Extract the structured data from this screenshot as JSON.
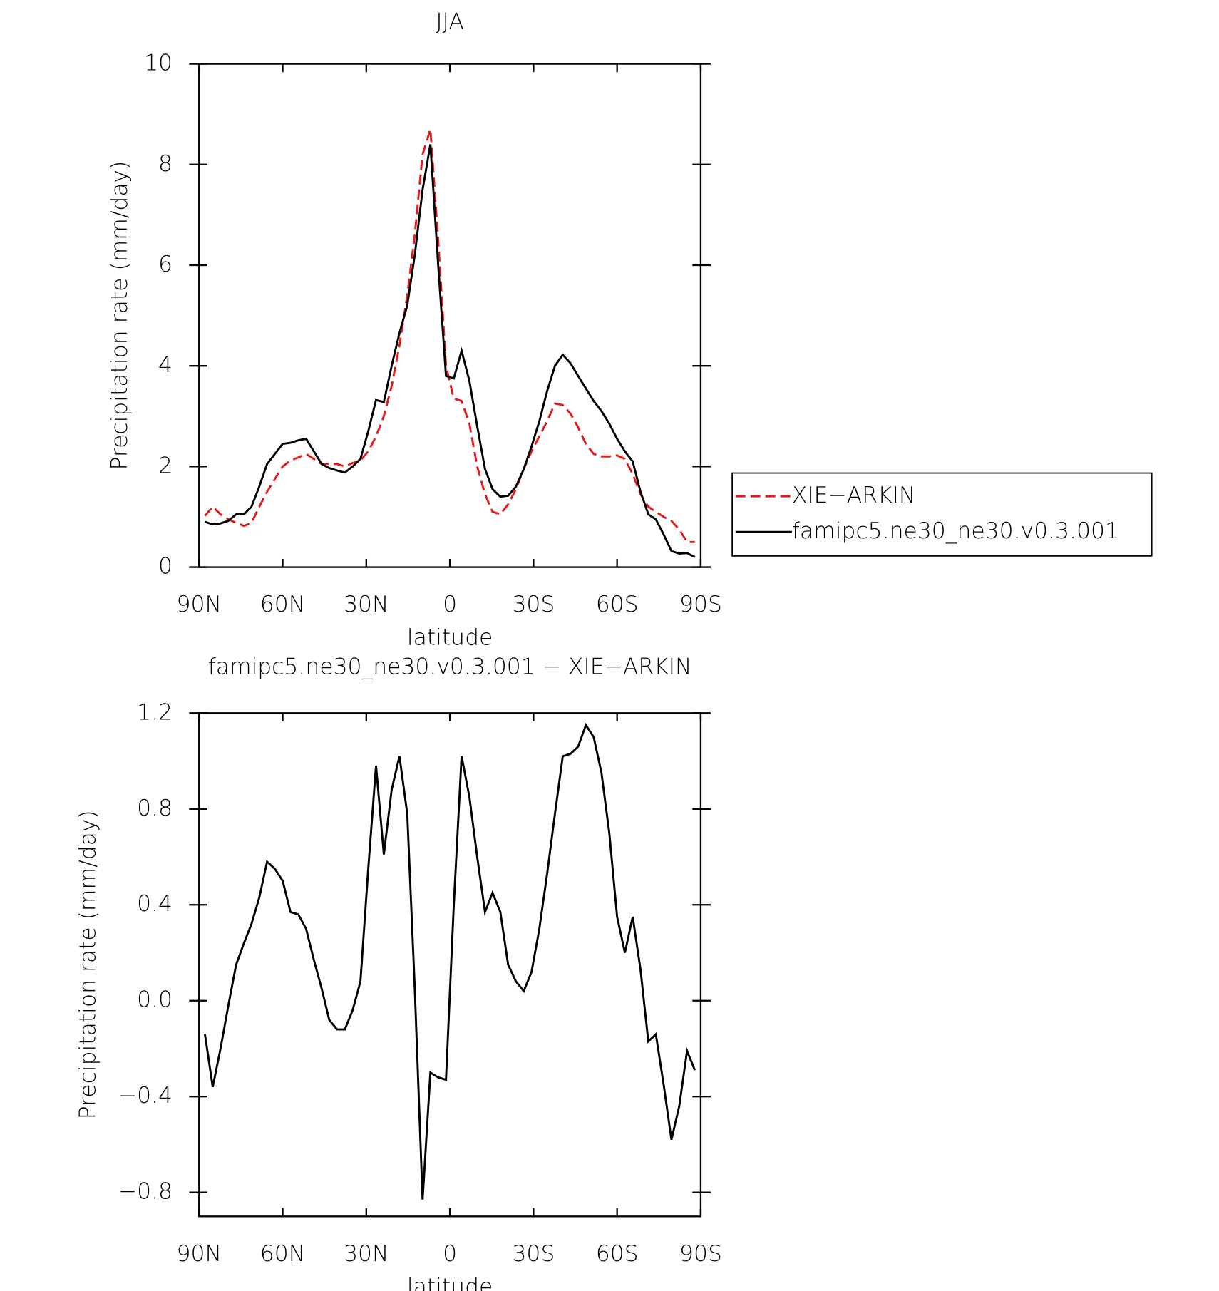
{
  "chart_data": [
    {
      "type": "line",
      "title": "JJA",
      "x_label": "latitude",
      "y_label": "Precipitation rate (mm/day)",
      "x": [
        87.9,
        85.1,
        82.3,
        79.5,
        76.7,
        73.9,
        71.2,
        68.4,
        65.6,
        62.8,
        60.0,
        57.2,
        54.4,
        51.6,
        48.8,
        46.0,
        43.3,
        40.5,
        37.7,
        34.9,
        32.1,
        29.3,
        26.5,
        23.7,
        20.9,
        18.1,
        15.3,
        12.6,
        9.8,
        7.0,
        4.2,
        1.4,
        -1.4,
        -4.2,
        -7.0,
        -9.8,
        -12.6,
        -15.3,
        -18.1,
        -20.9,
        -23.7,
        -26.5,
        -29.3,
        -32.1,
        -34.9,
        -37.7,
        -40.5,
        -43.3,
        -46.0,
        -48.8,
        -51.6,
        -54.4,
        -57.2,
        -60.0,
        -62.8,
        -65.6,
        -68.4,
        -71.2,
        -73.9,
        -76.7,
        -79.5,
        -82.3,
        -85.1,
        -87.9
      ],
      "series": [
        {
          "name": "XIE−ARKIN",
          "color": "#e41a1c",
          "dashed": true,
          "values": [
            1.02,
            1.2,
            1.05,
            0.95,
            0.88,
            0.82,
            0.88,
            1.2,
            1.5,
            1.75,
            2.0,
            2.12,
            2.18,
            2.25,
            2.15,
            2.05,
            2.05,
            2.05,
            2.0,
            2.07,
            2.12,
            2.3,
            2.6,
            3.0,
            3.6,
            4.4,
            5.4,
            6.6,
            8.2,
            8.7,
            6.5,
            4.0,
            3.35,
            3.3,
            2.85,
            2.0,
            1.45,
            1.1,
            1.05,
            1.25,
            1.55,
            1.95,
            2.3,
            2.6,
            2.9,
            3.25,
            3.22,
            3.05,
            2.78,
            2.45,
            2.25,
            2.2,
            2.2,
            2.22,
            2.15,
            1.85,
            1.45,
            1.2,
            1.1,
            1.0,
            0.92,
            0.75,
            0.5,
            0.5
          ]
        },
        {
          "name": "famipc5.ne30_ne30.v0.3.001",
          "color": "#000000",
          "dashed": false,
          "values": [
            0.9,
            0.85,
            0.87,
            0.92,
            1.05,
            1.05,
            1.2,
            1.6,
            2.05,
            2.25,
            2.45,
            2.47,
            2.52,
            2.55,
            2.3,
            2.05,
            1.97,
            1.92,
            1.88,
            2.0,
            2.15,
            2.7,
            3.32,
            3.28,
            4.0,
            4.65,
            5.2,
            6.2,
            7.5,
            8.4,
            6.0,
            3.8,
            3.75,
            4.3,
            3.7,
            2.8,
            1.95,
            1.55,
            1.4,
            1.42,
            1.6,
            1.95,
            2.4,
            2.9,
            3.5,
            4.0,
            4.22,
            4.05,
            3.8,
            3.55,
            3.3,
            3.1,
            2.85,
            2.55,
            2.3,
            2.1,
            1.5,
            1.05,
            0.95,
            0.65,
            0.32,
            0.27,
            0.28,
            0.2
          ]
        }
      ],
      "xlim": [
        90,
        -90
      ],
      "xticks": [
        {
          "value": 90,
          "label": "90N"
        },
        {
          "value": 60,
          "label": "60N"
        },
        {
          "value": 30,
          "label": "30N"
        },
        0,
        {
          "value": -30,
          "label": "30S"
        },
        {
          "value": -60,
          "label": "60S"
        },
        {
          "value": -90,
          "label": "90S"
        }
      ],
      "ylim": [
        0,
        10
      ],
      "yticks": [
        0,
        2,
        4,
        6,
        8,
        10
      ],
      "legend": "right"
    },
    {
      "type": "line",
      "title": "famipc5.ne30_ne30.v0.3.001 − XIE−ARKIN",
      "x_label": "latitude",
      "y_label": "Precipitation rate (mm/day)",
      "x": [
        87.9,
        85.1,
        82.3,
        79.5,
        76.7,
        73.9,
        71.2,
        68.4,
        65.6,
        62.8,
        60.0,
        57.2,
        54.4,
        51.6,
        48.8,
        46.0,
        43.3,
        40.5,
        37.7,
        34.9,
        32.1,
        29.3,
        26.5,
        23.7,
        20.9,
        18.1,
        15.3,
        12.6,
        9.8,
        7.0,
        4.2,
        1.4,
        -1.4,
        -4.2,
        -7.0,
        -9.8,
        -12.6,
        -15.3,
        -18.1,
        -20.9,
        -23.7,
        -26.5,
        -29.3,
        -32.1,
        -34.9,
        -37.7,
        -40.5,
        -43.3,
        -46.0,
        -48.8,
        -51.6,
        -54.4,
        -57.2,
        -60.0,
        -62.8,
        -65.6,
        -68.4,
        -71.2,
        -73.9,
        -76.7,
        -79.5,
        -82.3,
        -85.1,
        -87.9
      ],
      "values": [
        -0.14,
        -0.36,
        -0.2,
        -0.02,
        0.15,
        0.24,
        0.32,
        0.43,
        0.58,
        0.55,
        0.5,
        0.37,
        0.36,
        0.3,
        0.17,
        0.05,
        -0.08,
        -0.12,
        -0.12,
        -0.04,
        0.08,
        0.55,
        0.98,
        0.61,
        0.88,
        1.02,
        0.78,
        0.05,
        -0.83,
        -0.3,
        -0.32,
        -0.33,
        0.4,
        1.02,
        0.85,
        0.6,
        0.37,
        0.45,
        0.37,
        0.15,
        0.08,
        0.04,
        0.12,
        0.3,
        0.53,
        0.78,
        1.02,
        1.03,
        1.06,
        1.15,
        1.1,
        0.95,
        0.7,
        0.35,
        0.2,
        0.35,
        0.13,
        -0.17,
        -0.14,
        -0.35,
        -0.58,
        -0.44,
        -0.21,
        -0.29
      ],
      "color": "#000000",
      "xlim": [
        90,
        -90
      ],
      "xticks": [
        {
          "value": 90,
          "label": "90N"
        },
        {
          "value": 60,
          "label": "60N"
        },
        {
          "value": 30,
          "label": "30N"
        },
        0,
        {
          "value": -30,
          "label": "30S"
        },
        {
          "value": -60,
          "label": "60S"
        },
        {
          "value": -90,
          "label": "90S"
        }
      ],
      "ylim": [
        -0.9,
        1.2
      ],
      "yticks": [
        {
          "value": 1.2,
          "label": "1.2"
        },
        0.8,
        0.4,
        {
          "value": 0,
          "label": "0.0"
        },
        {
          "value": -0.4,
          "label": "−0.4"
        },
        {
          "value": -0.8,
          "label": "−0.8"
        }
      ]
    }
  ]
}
